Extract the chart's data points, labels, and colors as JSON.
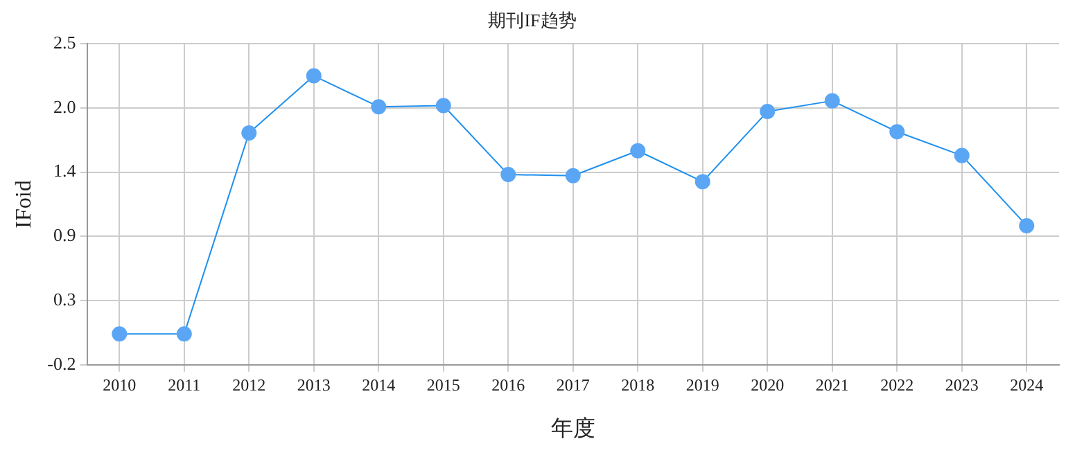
{
  "chart_data": {
    "type": "line",
    "title": "期刊IF趋势",
    "xlabel": "年度",
    "ylabel": "IFoid",
    "categories": [
      "2010",
      "2011",
      "2012",
      "2013",
      "2014",
      "2015",
      "2016",
      "2017",
      "2018",
      "2019",
      "2020",
      "2021",
      "2022",
      "2023",
      "2024"
    ],
    "series": [
      {
        "color": "#5aa6f5",
        "values": [
          0.06,
          0.06,
          1.75,
          2.23,
          1.97,
          1.98,
          1.4,
          1.39,
          1.6,
          1.34,
          1.93,
          2.02,
          1.76,
          1.56,
          0.97
        ]
      }
    ],
    "ylim": [
      -0.2,
      2.5
    ],
    "yticks": [
      -0.2,
      {
        "value": 0.34,
        "label": "0.3"
      },
      {
        "value": 0.88,
        "label": "0.9"
      },
      {
        "value": 1.42,
        "label": "1.4"
      },
      {
        "value": 1.96,
        "label": "2.0"
      },
      2.5
    ],
    "grid": true,
    "marker": "circle",
    "line_style": "solid",
    "legend": false
  }
}
